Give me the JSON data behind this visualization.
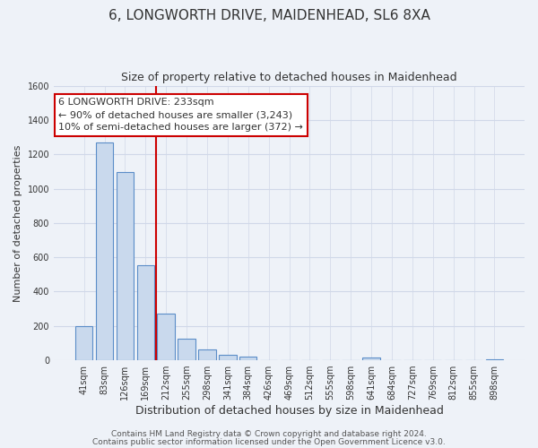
{
  "title": "6, LONGWORTH DRIVE, MAIDENHEAD, SL6 8XA",
  "subtitle": "Size of property relative to detached houses in Maidenhead",
  "xlabel": "Distribution of detached houses by size in Maidenhead",
  "ylabel": "Number of detached properties",
  "bar_labels": [
    "41sqm",
    "83sqm",
    "126sqm",
    "169sqm",
    "212sqm",
    "255sqm",
    "298sqm",
    "341sqm",
    "384sqm",
    "426sqm",
    "469sqm",
    "512sqm",
    "555sqm",
    "598sqm",
    "641sqm",
    "684sqm",
    "727sqm",
    "769sqm",
    "812sqm",
    "855sqm",
    "898sqm"
  ],
  "bar_values": [
    200,
    1270,
    1095,
    555,
    270,
    128,
    62,
    30,
    20,
    0,
    0,
    0,
    0,
    0,
    15,
    0,
    0,
    0,
    0,
    0,
    5
  ],
  "bar_color": "#c9d9ed",
  "bar_edge_color": "#5b8dc8",
  "vline_x_index": 3,
  "vline_color": "#cc0000",
  "ylim": [
    0,
    1600
  ],
  "yticks": [
    0,
    200,
    400,
    600,
    800,
    1000,
    1200,
    1400,
    1600
  ],
  "annotation_title": "6 LONGWORTH DRIVE: 233sqm",
  "annotation_line1": "← 90% of detached houses are smaller (3,243)",
  "annotation_line2": "10% of semi-detached houses are larger (372) →",
  "annotation_box_color": "#ffffff",
  "annotation_box_edge": "#cc0000",
  "footer_line1": "Contains HM Land Registry data © Crown copyright and database right 2024.",
  "footer_line2": "Contains public sector information licensed under the Open Government Licence v3.0.",
  "background_color": "#eef2f8",
  "plot_bg_color": "#eef2f8",
  "grid_color": "#d0d8e8",
  "title_fontsize": 11,
  "subtitle_fontsize": 9,
  "xlabel_fontsize": 9,
  "ylabel_fontsize": 8,
  "tick_fontsize": 7,
  "footer_fontsize": 6.5,
  "ann_fontsize": 8
}
